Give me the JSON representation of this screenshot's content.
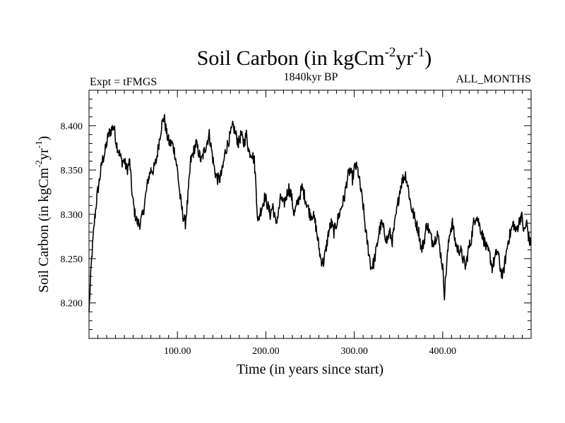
{
  "chart_data": {
    "type": "line",
    "title": {
      "main": "Soil Carbon (in kgCm",
      "exp1": "-2",
      "mid": "yr",
      "exp2": "-1",
      "end": ")"
    },
    "subtitle_left": "Expt = tFMGS",
    "subtitle_center": "1840kyr BP",
    "subtitle_right": "ALL_MONTHS",
    "xlabel": "Time (in years since start)",
    "ylabel": {
      "main": "Soil Carbon (in kgCm",
      "exp1": "-2",
      "mid": "yr",
      "exp2": "-1",
      "end": ")"
    },
    "xlim": [
      0,
      500
    ],
    "ylim": [
      8.16,
      8.44
    ],
    "x_ticks": [
      {
        "value": 100,
        "label": "100.00"
      },
      {
        "value": 200,
        "label": "200.00"
      },
      {
        "value": 300,
        "label": "300.00"
      },
      {
        "value": 400,
        "label": "400.00"
      }
    ],
    "y_ticks": [
      {
        "value": 8.2,
        "label": "8.200"
      },
      {
        "value": 8.25,
        "label": "8.250"
      },
      {
        "value": 8.3,
        "label": "8.300"
      },
      {
        "value": 8.35,
        "label": "8.350"
      },
      {
        "value": 8.4,
        "label": "8.400"
      }
    ],
    "series": [
      {
        "name": "Soil Carbon",
        "color": "#000000",
        "points": [
          [
            0,
            8.19
          ],
          [
            3,
            8.25
          ],
          [
            6,
            8.29
          ],
          [
            9,
            8.32
          ],
          [
            12,
            8.34
          ],
          [
            15,
            8.36
          ],
          [
            18,
            8.37
          ],
          [
            22,
            8.39
          ],
          [
            25,
            8.395
          ],
          [
            28,
            8.4
          ],
          [
            31,
            8.38
          ],
          [
            34,
            8.37
          ],
          [
            37,
            8.36
          ],
          [
            40,
            8.36
          ],
          [
            43,
            8.35
          ],
          [
            46,
            8.36
          ],
          [
            49,
            8.32
          ],
          [
            52,
            8.3
          ],
          [
            55,
            8.29
          ],
          [
            58,
            8.29
          ],
          [
            61,
            8.3
          ],
          [
            64,
            8.32
          ],
          [
            67,
            8.34
          ],
          [
            70,
            8.35
          ],
          [
            73,
            8.35
          ],
          [
            76,
            8.36
          ],
          [
            79,
            8.38
          ],
          [
            82,
            8.4
          ],
          [
            85,
            8.41
          ],
          [
            88,
            8.39
          ],
          [
            91,
            8.38
          ],
          [
            94,
            8.38
          ],
          [
            97,
            8.37
          ],
          [
            100,
            8.35
          ],
          [
            103,
            8.32
          ],
          [
            106,
            8.3
          ],
          [
            109,
            8.29
          ],
          [
            112,
            8.32
          ],
          [
            115,
            8.36
          ],
          [
            118,
            8.37
          ],
          [
            121,
            8.38
          ],
          [
            124,
            8.37
          ],
          [
            127,
            8.36
          ],
          [
            130,
            8.37
          ],
          [
            133,
            8.38
          ],
          [
            136,
            8.39
          ],
          [
            139,
            8.37
          ],
          [
            142,
            8.35
          ],
          [
            145,
            8.34
          ],
          [
            148,
            8.34
          ],
          [
            151,
            8.35
          ],
          [
            154,
            8.37
          ],
          [
            157,
            8.38
          ],
          [
            160,
            8.39
          ],
          [
            163,
            8.4
          ],
          [
            166,
            8.39
          ],
          [
            169,
            8.38
          ],
          [
            172,
            8.39
          ],
          [
            175,
            8.38
          ],
          [
            178,
            8.39
          ],
          [
            181,
            8.37
          ],
          [
            184,
            8.37
          ],
          [
            187,
            8.36
          ],
          [
            189,
            8.33
          ],
          [
            191,
            8.29
          ],
          [
            193,
            8.3
          ],
          [
            196,
            8.31
          ],
          [
            199,
            8.32
          ],
          [
            202,
            8.31
          ],
          [
            205,
            8.3
          ],
          [
            208,
            8.31
          ],
          [
            211,
            8.29
          ],
          [
            214,
            8.3
          ],
          [
            217,
            8.32
          ],
          [
            220,
            8.31
          ],
          [
            223,
            8.32
          ],
          [
            226,
            8.33
          ],
          [
            229,
            8.32
          ],
          [
            232,
            8.3
          ],
          [
            235,
            8.31
          ],
          [
            238,
            8.32
          ],
          [
            241,
            8.33
          ],
          [
            244,
            8.32
          ],
          [
            247,
            8.31
          ],
          [
            250,
            8.3
          ],
          [
            253,
            8.3
          ],
          [
            256,
            8.29
          ],
          [
            259,
            8.27
          ],
          [
            262,
            8.25
          ],
          [
            265,
            8.245
          ],
          [
            268,
            8.26
          ],
          [
            271,
            8.28
          ],
          [
            274,
            8.29
          ],
          [
            277,
            8.28
          ],
          [
            280,
            8.29
          ],
          [
            283,
            8.3
          ],
          [
            286,
            8.31
          ],
          [
            289,
            8.32
          ],
          [
            292,
            8.34
          ],
          [
            295,
            8.35
          ],
          [
            298,
            8.34
          ],
          [
            301,
            8.355
          ],
          [
            304,
            8.35
          ],
          [
            307,
            8.33
          ],
          [
            310,
            8.31
          ],
          [
            313,
            8.28
          ],
          [
            316,
            8.26
          ],
          [
            319,
            8.24
          ],
          [
            322,
            8.245
          ],
          [
            325,
            8.26
          ],
          [
            328,
            8.28
          ],
          [
            331,
            8.29
          ],
          [
            334,
            8.28
          ],
          [
            337,
            8.27
          ],
          [
            340,
            8.28
          ],
          [
            343,
            8.27
          ],
          [
            346,
            8.29
          ],
          [
            349,
            8.31
          ],
          [
            352,
            8.33
          ],
          [
            355,
            8.34
          ],
          [
            358,
            8.345
          ],
          [
            361,
            8.33
          ],
          [
            364,
            8.31
          ],
          [
            367,
            8.3
          ],
          [
            370,
            8.29
          ],
          [
            373,
            8.28
          ],
          [
            376,
            8.26
          ],
          [
            379,
            8.27
          ],
          [
            382,
            8.29
          ],
          [
            385,
            8.28
          ],
          [
            388,
            8.27
          ],
          [
            391,
            8.27
          ],
          [
            394,
            8.28
          ],
          [
            397,
            8.26
          ],
          [
            400,
            8.24
          ],
          [
            402,
            8.21
          ],
          [
            405,
            8.25
          ],
          [
            408,
            8.28
          ],
          [
            411,
            8.29
          ],
          [
            414,
            8.27
          ],
          [
            417,
            8.26
          ],
          [
            420,
            8.26
          ],
          [
            423,
            8.25
          ],
          [
            426,
            8.24
          ],
          [
            429,
            8.26
          ],
          [
            432,
            8.27
          ],
          [
            435,
            8.29
          ],
          [
            438,
            8.3
          ],
          [
            441,
            8.29
          ],
          [
            444,
            8.28
          ],
          [
            447,
            8.27
          ],
          [
            450,
            8.26
          ],
          [
            453,
            8.255
          ],
          [
            456,
            8.24
          ],
          [
            459,
            8.25
          ],
          [
            462,
            8.26
          ],
          [
            465,
            8.24
          ],
          [
            468,
            8.23
          ],
          [
            471,
            8.25
          ],
          [
            474,
            8.27
          ],
          [
            477,
            8.28
          ],
          [
            480,
            8.29
          ],
          [
            483,
            8.28
          ],
          [
            486,
            8.29
          ],
          [
            489,
            8.3
          ],
          [
            492,
            8.28
          ],
          [
            495,
            8.29
          ],
          [
            498,
            8.27
          ],
          [
            500,
            8.265
          ]
        ]
      }
    ]
  }
}
